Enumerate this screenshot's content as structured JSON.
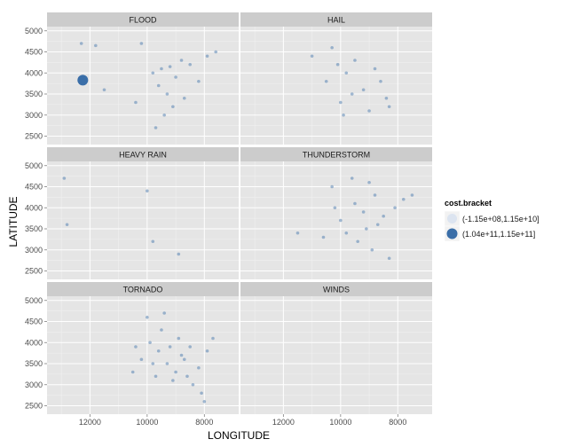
{
  "chart_data": {
    "type": "scatter",
    "xlabel": "LONGITUDE",
    "ylabel": "LATITUDE",
    "xlim": [
      13500,
      6800
    ],
    "ylim": [
      2300,
      5100
    ],
    "x_ticks": [
      12000,
      10000,
      8000
    ],
    "x_tick_labels": [
      "12000",
      "10000",
      "8000"
    ],
    "y_ticks": [
      2500,
      3000,
      3500,
      4000,
      4500,
      5000
    ],
    "y_tick_labels": [
      "2500",
      "3000",
      "3500",
      "4000",
      "4500",
      "5000"
    ],
    "grid": true,
    "legend": {
      "title": "cost.bracket",
      "position": "right",
      "entries": [
        {
          "label": "(-1.15e+08,1.15e+10]",
          "color": "#dce4f0"
        },
        {
          "label": "(1.04e+11,1.15e+11]",
          "color": "#3a6ea8"
        }
      ]
    },
    "colors": {
      "panel_bg": "#e5e5e5",
      "strip_bg": "#cccccc",
      "grid_major": "#ffffff",
      "point": "#3a6ea8",
      "point_light": "#dce4f0"
    },
    "panels": [
      {
        "name": "FLOOD",
        "large_points": [
          {
            "x": 12250,
            "y": 3830
          }
        ],
        "small_points": [
          {
            "x": 9500,
            "y": 4100
          },
          {
            "x": 9200,
            "y": 4150
          },
          {
            "x": 9000,
            "y": 3900
          },
          {
            "x": 9600,
            "y": 3700
          },
          {
            "x": 9300,
            "y": 3500
          },
          {
            "x": 8800,
            "y": 4300
          },
          {
            "x": 8500,
            "y": 4200
          },
          {
            "x": 9800,
            "y": 4000
          },
          {
            "x": 10200,
            "y": 4700
          },
          {
            "x": 11800,
            "y": 4650
          },
          {
            "x": 12300,
            "y": 4700
          },
          {
            "x": 7900,
            "y": 4400
          },
          {
            "x": 7600,
            "y": 4500
          },
          {
            "x": 9100,
            "y": 3200
          },
          {
            "x": 9400,
            "y": 3000
          },
          {
            "x": 8200,
            "y": 3800
          },
          {
            "x": 10400,
            "y": 3300
          },
          {
            "x": 9700,
            "y": 2700
          },
          {
            "x": 11500,
            "y": 3600
          },
          {
            "x": 8700,
            "y": 3400
          }
        ]
      },
      {
        "name": "HAIL",
        "large_points": [],
        "small_points": [
          {
            "x": 9800,
            "y": 4000
          },
          {
            "x": 9500,
            "y": 4300
          },
          {
            "x": 10100,
            "y": 4200
          },
          {
            "x": 10500,
            "y": 3800
          },
          {
            "x": 9200,
            "y": 3600
          },
          {
            "x": 8400,
            "y": 3400
          },
          {
            "x": 8300,
            "y": 3200
          },
          {
            "x": 9000,
            "y": 3100
          },
          {
            "x": 9600,
            "y": 3500
          },
          {
            "x": 10000,
            "y": 3300
          },
          {
            "x": 8800,
            "y": 4100
          },
          {
            "x": 10300,
            "y": 4600
          },
          {
            "x": 11000,
            "y": 4400
          },
          {
            "x": 9900,
            "y": 3000
          },
          {
            "x": 8600,
            "y": 3800
          }
        ]
      },
      {
        "name": "HEAVY RAIN",
        "large_points": [],
        "small_points": [
          {
            "x": 12900,
            "y": 4700
          },
          {
            "x": 12800,
            "y": 3600
          },
          {
            "x": 10000,
            "y": 4400
          },
          {
            "x": 9800,
            "y": 3200
          },
          {
            "x": 8900,
            "y": 2900
          }
        ]
      },
      {
        "name": "THUNDERSTORM",
        "large_points": [],
        "small_points": [
          {
            "x": 9500,
            "y": 4100
          },
          {
            "x": 9200,
            "y": 3900
          },
          {
            "x": 8800,
            "y": 4300
          },
          {
            "x": 10000,
            "y": 3700
          },
          {
            "x": 9800,
            "y": 3400
          },
          {
            "x": 9100,
            "y": 3500
          },
          {
            "x": 8500,
            "y": 3800
          },
          {
            "x": 10300,
            "y": 4500
          },
          {
            "x": 9600,
            "y": 4700
          },
          {
            "x": 8100,
            "y": 4000
          },
          {
            "x": 7800,
            "y": 4200
          },
          {
            "x": 9400,
            "y": 3200
          },
          {
            "x": 8900,
            "y": 3000
          },
          {
            "x": 10600,
            "y": 3300
          },
          {
            "x": 8300,
            "y": 2800
          },
          {
            "x": 11500,
            "y": 3400
          },
          {
            "x": 9000,
            "y": 4600
          },
          {
            "x": 10200,
            "y": 4000
          },
          {
            "x": 7500,
            "y": 4300
          },
          {
            "x": 8700,
            "y": 3600
          }
        ]
      },
      {
        "name": "TORNADO",
        "large_points": [],
        "small_points": [
          {
            "x": 9600,
            "y": 3800
          },
          {
            "x": 9300,
            "y": 3500
          },
          {
            "x": 9000,
            "y": 3300
          },
          {
            "x": 8700,
            "y": 3600
          },
          {
            "x": 9900,
            "y": 4000
          },
          {
            "x": 10200,
            "y": 3600
          },
          {
            "x": 9500,
            "y": 4300
          },
          {
            "x": 8500,
            "y": 3900
          },
          {
            "x": 8200,
            "y": 3400
          },
          {
            "x": 8400,
            "y": 3000
          },
          {
            "x": 9100,
            "y": 3100
          },
          {
            "x": 9700,
            "y": 3200
          },
          {
            "x": 8900,
            "y": 4100
          },
          {
            "x": 10500,
            "y": 3300
          },
          {
            "x": 10000,
            "y": 4600
          },
          {
            "x": 8000,
            "y": 2600
          },
          {
            "x": 8100,
            "y": 2800
          },
          {
            "x": 7700,
            "y": 4100
          },
          {
            "x": 9400,
            "y": 4700
          },
          {
            "x": 8800,
            "y": 3700
          },
          {
            "x": 9200,
            "y": 3900
          },
          {
            "x": 10400,
            "y": 3900
          },
          {
            "x": 8600,
            "y": 3200
          },
          {
            "x": 9800,
            "y": 3500
          },
          {
            "x": 7900,
            "y": 3800
          }
        ]
      },
      {
        "name": "WINDS",
        "large_points": [],
        "small_points": []
      }
    ]
  }
}
